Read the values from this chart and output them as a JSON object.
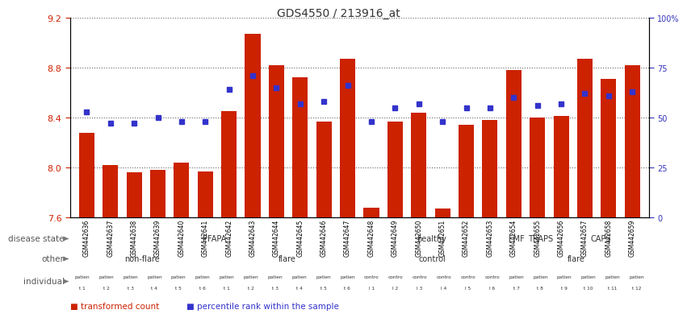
{
  "title": "GDS4550 / 213916_at",
  "sample_ids": [
    "GSM442636",
    "GSM442637",
    "GSM442638",
    "GSM442639",
    "GSM442640",
    "GSM442641",
    "GSM442642",
    "GSM442643",
    "GSM442644",
    "GSM442645",
    "GSM442646",
    "GSM442647",
    "GSM442648",
    "GSM442649",
    "GSM442650",
    "GSM442651",
    "GSM442652",
    "GSM442653",
    "GSM442654",
    "GSM442655",
    "GSM442656",
    "GSM442657",
    "GSM442658",
    "GSM442659"
  ],
  "bar_values": [
    8.28,
    8.02,
    7.96,
    7.98,
    8.04,
    7.97,
    8.45,
    9.07,
    8.82,
    8.72,
    8.37,
    8.87,
    7.68,
    8.37,
    8.44,
    7.67,
    8.34,
    8.38,
    8.78,
    8.4,
    8.41,
    8.87,
    8.71,
    8.82
  ],
  "percentile_values": [
    53,
    47,
    47,
    50,
    48,
    48,
    64,
    71,
    65,
    57,
    58,
    66,
    48,
    55,
    57,
    48,
    55,
    55,
    60,
    56,
    57,
    62,
    61,
    63
  ],
  "ymin": 7.6,
  "ymax": 9.2,
  "y_ticks_left": [
    7.6,
    8.0,
    8.4,
    8.8,
    9.2
  ],
  "y_ticks_right": [
    0,
    25,
    50,
    75,
    100
  ],
  "bar_color": "#cc2200",
  "dot_color": "#3333cc",
  "disease_groups": [
    {
      "label": "PFAPA",
      "start": 0,
      "end": 12,
      "color": "#c8eec8"
    },
    {
      "label": "healthy",
      "start": 12,
      "end": 18,
      "color": "#88dd88"
    },
    {
      "label": "FMF",
      "start": 18,
      "end": 19,
      "color": "#66cc66"
    },
    {
      "label": "TRAPS",
      "start": 19,
      "end": 20,
      "color": "#99ee55"
    },
    {
      "label": "CAPS",
      "start": 20,
      "end": 24,
      "color": "#44dd44"
    }
  ],
  "other_groups": [
    {
      "label": "non-flare",
      "start": 0,
      "end": 6,
      "color": "#d4c8ec"
    },
    {
      "label": "flare",
      "start": 6,
      "end": 12,
      "color": "#9977cc"
    },
    {
      "label": "control",
      "start": 12,
      "end": 18,
      "color": "#8899ee"
    },
    {
      "label": "flare",
      "start": 18,
      "end": 24,
      "color": "#9977cc"
    }
  ],
  "ind_top": [
    "patien",
    "patien",
    "patien",
    "patien",
    "patien",
    "patien",
    "patien",
    "patien",
    "patien",
    "patien",
    "patien",
    "patien",
    "contro",
    "contro",
    "contro",
    "contro",
    "contro",
    "contro",
    "patien",
    "patien",
    "patien",
    "patien",
    "patien",
    "patien"
  ],
  "ind_bot": [
    "t 1",
    "t 2",
    "t 3",
    "t 4",
    "t 5",
    "t 6",
    "t 1",
    "t 2",
    "t 3",
    "t 4",
    "t 5",
    "t 6",
    "l 1",
    "l 2",
    "l 3",
    "l 4",
    "l 5",
    "l 6",
    "t 7",
    "t 8",
    "t 9",
    "t 10",
    "t 11",
    "t 12"
  ],
  "ind_color": "#f0a0a0",
  "bg_color": "#ffffff",
  "n_samples": 24
}
